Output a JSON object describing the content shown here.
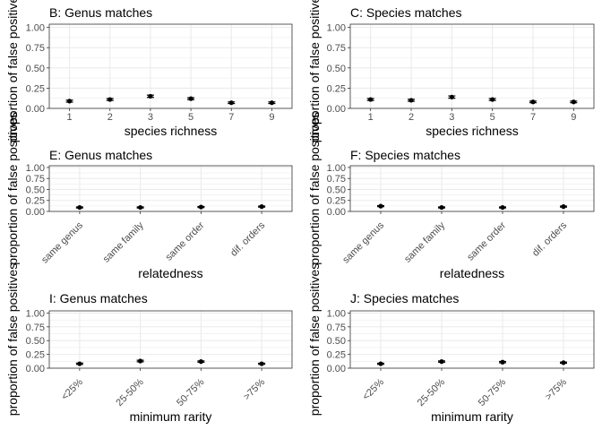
{
  "figure": {
    "ylabel": "proportion of false positives"
  },
  "chart_data": [
    {
      "type": "scatter",
      "title": "B: Genus matches",
      "xlabel": "species richness",
      "ylabel": "proportion of false positives",
      "categories": [
        "1",
        "2",
        "3",
        "5",
        "7",
        "9"
      ],
      "values": [
        0.09,
        0.11,
        0.15,
        0.12,
        0.07,
        0.07
      ],
      "errors": [
        0.012,
        0.012,
        0.014,
        0.012,
        0.01,
        0.01
      ],
      "yticks": [
        "0.00",
        "0.25",
        "0.50",
        "0.75",
        "1.00"
      ],
      "ylim": [
        0,
        1.04
      ],
      "grid": true,
      "xtick_rotation": 0
    },
    {
      "type": "scatter",
      "title": "C: Species matches",
      "xlabel": "species richness",
      "ylabel": "proportion of false positives",
      "categories": [
        "1",
        "2",
        "3",
        "5",
        "7",
        "9"
      ],
      "values": [
        0.11,
        0.1,
        0.14,
        0.11,
        0.08,
        0.08
      ],
      "errors": [
        0.012,
        0.012,
        0.014,
        0.012,
        0.01,
        0.01
      ],
      "yticks": [
        "0.00",
        "0.25",
        "0.50",
        "0.75",
        "1.00"
      ],
      "ylim": [
        0,
        1.04
      ],
      "grid": true,
      "xtick_rotation": 0
    },
    {
      "type": "scatter",
      "title": "E: Genus matches",
      "xlabel": "relatedness",
      "ylabel": "proportion of false positives",
      "categories": [
        "same genus",
        "same family",
        "same order",
        "dif. orders"
      ],
      "values": [
        0.09,
        0.09,
        0.1,
        0.11
      ],
      "errors": [
        0.012,
        0.012,
        0.012,
        0.012
      ],
      "yticks": [
        "0.00",
        "0.25",
        "0.50",
        "0.75",
        "1.00"
      ],
      "ylim": [
        0,
        1.04
      ],
      "grid": true,
      "xtick_rotation": -45
    },
    {
      "type": "scatter",
      "title": "F: Species matches",
      "xlabel": "relatedness",
      "ylabel": "proportion of false positives",
      "categories": [
        "same genus",
        "same family",
        "same order",
        "dif. orders"
      ],
      "values": [
        0.12,
        0.09,
        0.09,
        0.11
      ],
      "errors": [
        0.012,
        0.012,
        0.012,
        0.012
      ],
      "yticks": [
        "0.00",
        "0.25",
        "0.50",
        "0.75",
        "1.00"
      ],
      "ylim": [
        0,
        1.04
      ],
      "grid": true,
      "xtick_rotation": -45
    },
    {
      "type": "scatter",
      "title": "I: Genus matches",
      "xlabel": "minimum rarity",
      "ylabel": "proportion of false positives",
      "categories": [
        "<25%",
        "25-50%",
        "50-75%",
        ">75%"
      ],
      "values": [
        0.08,
        0.13,
        0.12,
        0.08
      ],
      "errors": [
        0.012,
        0.014,
        0.012,
        0.01
      ],
      "yticks": [
        "0.00",
        "0.25",
        "0.50",
        "0.75",
        "1.00"
      ],
      "ylim": [
        0,
        1.04
      ],
      "grid": true,
      "xtick_rotation": -45
    },
    {
      "type": "scatter",
      "title": "J: Species matches",
      "xlabel": "minimum rarity",
      "ylabel": "proportion of false positives",
      "categories": [
        "<25%",
        "25-50%",
        "50-75%",
        ">75%"
      ],
      "values": [
        0.08,
        0.12,
        0.11,
        0.1
      ],
      "errors": [
        0.01,
        0.012,
        0.012,
        0.01
      ],
      "yticks": [
        "0.00",
        "0.25",
        "0.50",
        "0.75",
        "1.00"
      ],
      "ylim": [
        0,
        1.04
      ],
      "grid": true,
      "xtick_rotation": -45
    }
  ],
  "colors": {
    "panel_border": "#333333",
    "grid": "#ebebeb",
    "point": "#000000",
    "tick_text": "#4d4d4d",
    "text": "#000000"
  }
}
